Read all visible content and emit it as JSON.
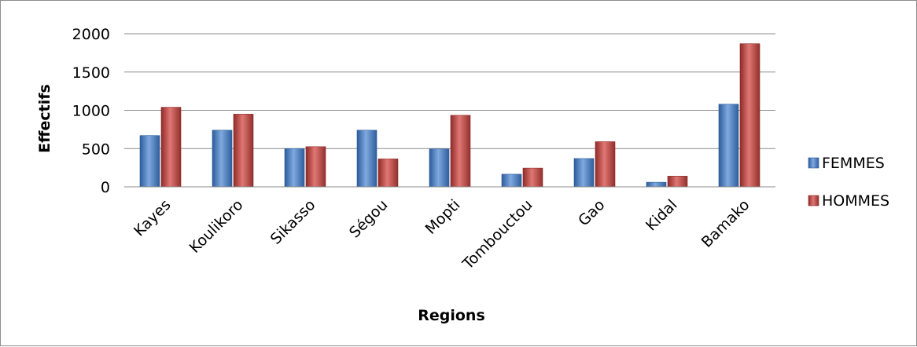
{
  "chart_data": {
    "type": "bar",
    "title": "",
    "xlabel": "Regions",
    "ylabel": "Effectifs",
    "categories": [
      "Kayes",
      "Koulikoro",
      "Sikasso",
      "Ségou",
      "Mopti",
      "Tombouctou",
      "Gao",
      "Kidal",
      "Bamako"
    ],
    "ylim": [
      0,
      2000
    ],
    "yticks": [
      "0",
      "500",
      "1000",
      "1500",
      "2000"
    ],
    "grid": true,
    "legend_position": "right",
    "series": [
      {
        "name": "FEMMES",
        "color": "#4F81BD",
        "values": [
          670,
          740,
          500,
          740,
          495,
          165,
          370,
          60,
          1080
        ]
      },
      {
        "name": "HOMMES",
        "color": "#C0504D",
        "values": [
          1040,
          950,
          525,
          365,
          935,
          245,
          590,
          140,
          1870
        ]
      }
    ]
  }
}
